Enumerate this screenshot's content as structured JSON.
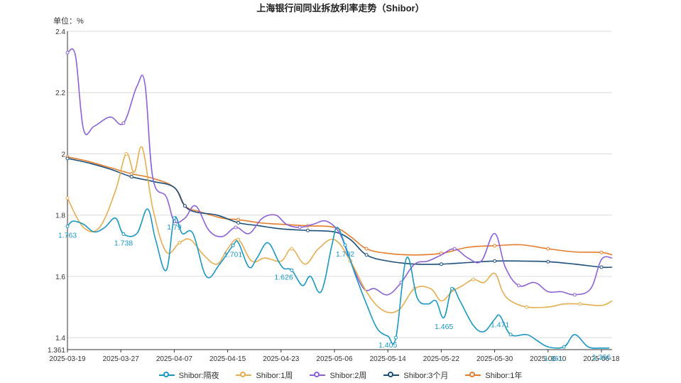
{
  "chart_data": {
    "type": "line",
    "title": "上海银行间同业拆放利率走势（Shibor）",
    "unit_label": "单位：%",
    "ylim": [
      1.361,
      2.4
    ],
    "yticks": [
      "2.4",
      "2.2",
      "2",
      "1.8",
      "1.6",
      "1.4",
      "1.361"
    ],
    "ytick_values": [
      2.4,
      2.2,
      2.0,
      1.8,
      1.6,
      1.4,
      1.361
    ],
    "x_tick_labels": [
      "2025-03-19",
      "2025-03-27",
      "2025-04-07",
      "2025-04-15",
      "2025-04-23",
      "2025-05-06",
      "2025-05-14",
      "2025-05-22",
      "2025-05-30",
      "2025-06-10",
      "2025-06-18"
    ],
    "x_tick_positions": [
      0,
      1,
      2,
      3,
      4,
      5,
      6,
      7,
      8,
      9,
      10
    ],
    "grid": true,
    "legend_position": "bottom",
    "series": [
      {
        "name": "Shibor:隔夜",
        "color": "#1a97c2",
        "points": [
          [
            0,
            1.763
          ],
          [
            0.1,
            1.78
          ],
          [
            0.3,
            1.77
          ],
          [
            0.5,
            1.745
          ],
          [
            0.7,
            1.76
          ],
          [
            0.9,
            1.79
          ],
          [
            1.05,
            1.738
          ],
          [
            1.3,
            1.74
          ],
          [
            1.5,
            1.82
          ],
          [
            1.65,
            1.72
          ],
          [
            1.85,
            1.62
          ],
          [
            2.0,
            1.79
          ],
          [
            2.15,
            1.74
          ],
          [
            2.35,
            1.74
          ],
          [
            2.6,
            1.6
          ],
          [
            2.85,
            1.64
          ],
          [
            3.1,
            1.701
          ],
          [
            3.2,
            1.71
          ],
          [
            3.4,
            1.63
          ],
          [
            3.55,
            1.66
          ],
          [
            3.75,
            1.71
          ],
          [
            3.95,
            1.65
          ],
          [
            4.05,
            1.626
          ],
          [
            4.2,
            1.62
          ],
          [
            4.4,
            1.57
          ],
          [
            4.55,
            1.6
          ],
          [
            4.75,
            1.55
          ],
          [
            4.95,
            1.7
          ],
          [
            5.05,
            1.76
          ],
          [
            5.2,
            1.702
          ],
          [
            5.4,
            1.6
          ],
          [
            5.6,
            1.51
          ],
          [
            5.8,
            1.43
          ],
          [
            6.0,
            1.405
          ],
          [
            6.15,
            1.4
          ],
          [
            6.35,
            1.66
          ],
          [
            6.55,
            1.53
          ],
          [
            6.75,
            1.51
          ],
          [
            6.9,
            1.52
          ],
          [
            7.05,
            1.465
          ],
          [
            7.2,
            1.56
          ],
          [
            7.35,
            1.52
          ],
          [
            7.6,
            1.44
          ],
          [
            7.8,
            1.42
          ],
          [
            8.0,
            1.46
          ],
          [
            8.1,
            1.471
          ],
          [
            8.3,
            1.41
          ],
          [
            8.6,
            1.41
          ],
          [
            8.8,
            1.39
          ],
          [
            9.0,
            1.37
          ],
          [
            9.3,
            1.37
          ],
          [
            9.5,
            1.41
          ],
          [
            9.75,
            1.37
          ],
          [
            10.0,
            1.366
          ],
          [
            10.15,
            1.366
          ]
        ],
        "labels": [
          [
            0,
            1.763,
            "1.763"
          ],
          [
            1.05,
            1.738,
            "1.738"
          ],
          [
            2.0,
            1.79,
            "1.79"
          ],
          [
            3.1,
            1.701,
            "1.701"
          ],
          [
            4.05,
            1.626,
            "1.626"
          ],
          [
            5.2,
            1.702,
            "1.702"
          ],
          [
            6.0,
            1.405,
            "1.405"
          ],
          [
            7.05,
            1.465,
            "1.465"
          ],
          [
            8.1,
            1.471,
            "1.471"
          ],
          [
            9.1,
            1.361,
            "1.361"
          ],
          [
            10.0,
            1.366,
            "1.366"
          ]
        ]
      },
      {
        "name": "Shibor:1周",
        "color": "#e5ad4f",
        "points": [
          [
            0,
            1.855
          ],
          [
            0.3,
            1.76
          ],
          [
            0.6,
            1.76
          ],
          [
            0.9,
            1.88
          ],
          [
            1.1,
            2.0
          ],
          [
            1.25,
            1.94
          ],
          [
            1.4,
            2.02
          ],
          [
            1.6,
            1.82
          ],
          [
            1.85,
            1.68
          ],
          [
            2.1,
            1.71
          ],
          [
            2.3,
            1.72
          ],
          [
            2.55,
            1.67
          ],
          [
            2.8,
            1.64
          ],
          [
            3.0,
            1.69
          ],
          [
            3.2,
            1.72
          ],
          [
            3.45,
            1.65
          ],
          [
            3.7,
            1.66
          ],
          [
            4.0,
            1.65
          ],
          [
            4.2,
            1.69
          ],
          [
            4.45,
            1.64
          ],
          [
            4.7,
            1.69
          ],
          [
            5.0,
            1.72
          ],
          [
            5.3,
            1.65
          ],
          [
            5.6,
            1.55
          ],
          [
            5.9,
            1.49
          ],
          [
            6.2,
            1.49
          ],
          [
            6.5,
            1.56
          ],
          [
            6.8,
            1.56
          ],
          [
            7.0,
            1.52
          ],
          [
            7.2,
            1.55
          ],
          [
            7.4,
            1.57
          ],
          [
            7.6,
            1.59
          ],
          [
            7.8,
            1.58
          ],
          [
            8.0,
            1.61
          ],
          [
            8.15,
            1.55
          ],
          [
            8.3,
            1.52
          ],
          [
            8.6,
            1.5
          ],
          [
            9.0,
            1.5
          ],
          [
            9.3,
            1.51
          ],
          [
            9.6,
            1.51
          ],
          [
            10.0,
            1.505
          ],
          [
            10.2,
            1.52
          ]
        ]
      },
      {
        "name": "Shibor:2周",
        "color": "#8b61d8",
        "points": [
          [
            0,
            2.33
          ],
          [
            0.15,
            2.32
          ],
          [
            0.3,
            2.08
          ],
          [
            0.5,
            2.09
          ],
          [
            0.8,
            2.12
          ],
          [
            1.05,
            2.1
          ],
          [
            1.3,
            2.22
          ],
          [
            1.45,
            2.23
          ],
          [
            1.6,
            1.92
          ],
          [
            1.85,
            1.86
          ],
          [
            2.0,
            1.78
          ],
          [
            2.2,
            1.79
          ],
          [
            2.4,
            1.83
          ],
          [
            2.65,
            1.75
          ],
          [
            2.9,
            1.73
          ],
          [
            3.15,
            1.76
          ],
          [
            3.4,
            1.74
          ],
          [
            3.65,
            1.79
          ],
          [
            3.9,
            1.8
          ],
          [
            4.1,
            1.77
          ],
          [
            4.35,
            1.76
          ],
          [
            4.6,
            1.77
          ],
          [
            4.85,
            1.78
          ],
          [
            5.1,
            1.74
          ],
          [
            5.3,
            1.65
          ],
          [
            5.55,
            1.56
          ],
          [
            5.75,
            1.56
          ],
          [
            6.0,
            1.54
          ],
          [
            6.25,
            1.58
          ],
          [
            6.5,
            1.64
          ],
          [
            6.75,
            1.65
          ],
          [
            7.0,
            1.67
          ],
          [
            7.25,
            1.69
          ],
          [
            7.5,
            1.66
          ],
          [
            7.75,
            1.65
          ],
          [
            8.0,
            1.74
          ],
          [
            8.2,
            1.63
          ],
          [
            8.45,
            1.57
          ],
          [
            8.75,
            1.58
          ],
          [
            9.0,
            1.55
          ],
          [
            9.25,
            1.55
          ],
          [
            9.5,
            1.54
          ],
          [
            9.8,
            1.56
          ],
          [
            10.0,
            1.655
          ],
          [
            10.2,
            1.66
          ]
        ]
      },
      {
        "name": "Shibor:3个月",
        "color": "#1b4f7a",
        "points": [
          [
            0,
            1.985
          ],
          [
            0.4,
            1.97
          ],
          [
            0.8,
            1.95
          ],
          [
            1.2,
            1.925
          ],
          [
            1.6,
            1.91
          ],
          [
            2.0,
            1.89
          ],
          [
            2.2,
            1.83
          ],
          [
            2.4,
            1.81
          ],
          [
            2.8,
            1.8
          ],
          [
            3.2,
            1.775
          ],
          [
            3.6,
            1.765
          ],
          [
            4.0,
            1.755
          ],
          [
            4.5,
            1.75
          ],
          [
            5.0,
            1.745
          ],
          [
            5.3,
            1.72
          ],
          [
            5.6,
            1.67
          ],
          [
            6.0,
            1.65
          ],
          [
            6.5,
            1.64
          ],
          [
            7.0,
            1.64
          ],
          [
            7.5,
            1.645
          ],
          [
            8.0,
            1.65
          ],
          [
            8.5,
            1.65
          ],
          [
            9.0,
            1.648
          ],
          [
            9.5,
            1.64
          ],
          [
            10.0,
            1.63
          ],
          [
            10.2,
            1.63
          ]
        ]
      },
      {
        "name": "Shibor:1年",
        "color": "#e67d2c",
        "points": [
          [
            0,
            1.99
          ],
          [
            0.4,
            1.975
          ],
          [
            0.8,
            1.955
          ],
          [
            1.2,
            1.935
          ],
          [
            1.6,
            1.92
          ],
          [
            2.0,
            1.89
          ],
          [
            2.2,
            1.83
          ],
          [
            2.5,
            1.81
          ],
          [
            2.9,
            1.79
          ],
          [
            3.2,
            1.785
          ],
          [
            3.6,
            1.775
          ],
          [
            4.0,
            1.77
          ],
          [
            4.5,
            1.765
          ],
          [
            5.0,
            1.76
          ],
          [
            5.3,
            1.73
          ],
          [
            5.6,
            1.69
          ],
          [
            6.0,
            1.675
          ],
          [
            6.5,
            1.67
          ],
          [
            7.0,
            1.675
          ],
          [
            7.5,
            1.695
          ],
          [
            8.0,
            1.7
          ],
          [
            8.5,
            1.703
          ],
          [
            9.0,
            1.69
          ],
          [
            9.5,
            1.68
          ],
          [
            10.0,
            1.678
          ],
          [
            10.2,
            1.67
          ]
        ]
      }
    ]
  }
}
